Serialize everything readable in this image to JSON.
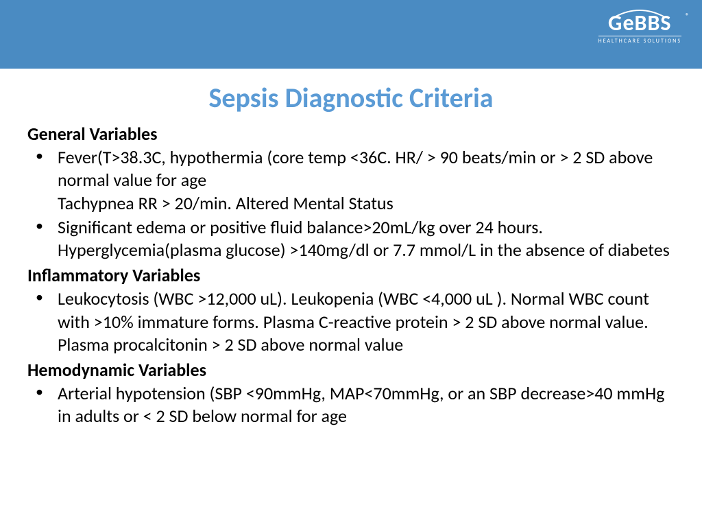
{
  "header": {
    "background_color": "#4a8bc2",
    "logo": {
      "main": "GeBBS",
      "subtitle": "HEALTHCARE SOLUTIONS",
      "registered": "®"
    }
  },
  "title": {
    "text": "Sepsis Diagnostic Criteria",
    "color": "#5b9bd5",
    "fontsize": 40
  },
  "body": {
    "text_color": "#000000",
    "fontsize": 26
  },
  "sections": [
    {
      "heading": "General Variables",
      "items": [
        "Fever(T>38.3C, hypothermia (core temp <36C. HR/ > 90 beats/min or > 2 SD above normal value for age\nTachypnea RR > 20/min. Altered Mental Status",
        "Significant edema or positive fluid balance>20mL/kg over 24 hours. Hyperglycemia(plasma glucose) >140mg/dl or 7.7 mmol/L in the absence of diabetes"
      ]
    },
    {
      "heading": "Inflammatory Variables",
      "items": [
        "Leukocytosis (WBC >12,000 uL). Leukopenia (WBC <4,000 uL ). Normal WBC count with >10% immature forms. Plasma C-reactive protein > 2 SD above normal value. Plasma procalcitonin > 2 SD above normal value"
      ]
    },
    {
      "heading": "Hemodynamic Variables",
      "items": [
        "Arterial hypotension (SBP <90mmHg, MAP<70mmHg, or an SBP decrease>40 mmHg in adults or < 2 SD below normal for age"
      ]
    }
  ]
}
